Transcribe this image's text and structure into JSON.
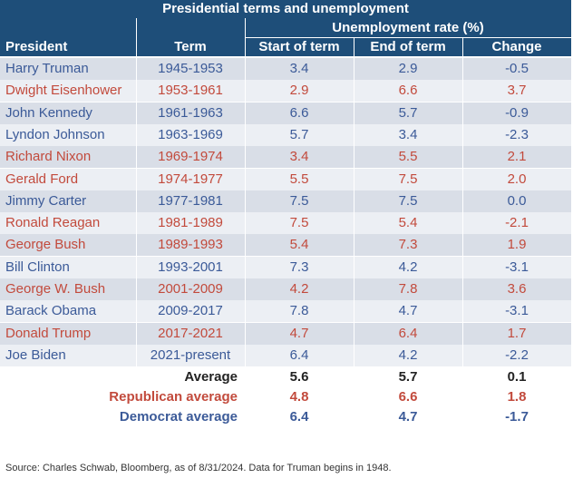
{
  "chart_data": {
    "type": "table",
    "title": "Presidential terms and unemployment",
    "group_header": "Unemployment rate (%)",
    "columns": [
      "President",
      "Term",
      "Start of term",
      "End of term",
      "Change"
    ],
    "rows": [
      {
        "president": "Harry Truman",
        "term": "1945-1953",
        "start": "3.4",
        "end": "2.9",
        "change": "-0.5",
        "party": "D"
      },
      {
        "president": "Dwight Eisenhower",
        "term": "1953-1961",
        "start": "2.9",
        "end": "6.6",
        "change": "3.7",
        "party": "R"
      },
      {
        "president": "John Kennedy",
        "term": "1961-1963",
        "start": "6.6",
        "end": "5.7",
        "change": "-0.9",
        "party": "D"
      },
      {
        "president": "Lyndon Johnson",
        "term": "1963-1969",
        "start": "5.7",
        "end": "3.4",
        "change": "-2.3",
        "party": "D"
      },
      {
        "president": "Richard Nixon",
        "term": "1969-1974",
        "start": "3.4",
        "end": "5.5",
        "change": "2.1",
        "party": "R"
      },
      {
        "president": "Gerald Ford",
        "term": "1974-1977",
        "start": "5.5",
        "end": "7.5",
        "change": "2.0",
        "party": "R"
      },
      {
        "president": "Jimmy Carter",
        "term": "1977-1981",
        "start": "7.5",
        "end": "7.5",
        "change": "0.0",
        "party": "D"
      },
      {
        "president": "Ronald Reagan",
        "term": "1981-1989",
        "start": "7.5",
        "end": "5.4",
        "change": "-2.1",
        "party": "R"
      },
      {
        "president": "George Bush",
        "term": "1989-1993",
        "start": "5.4",
        "end": "7.3",
        "change": "1.9",
        "party": "R"
      },
      {
        "president": "Bill Clinton",
        "term": "1993-2001",
        "start": "7.3",
        "end": "4.2",
        "change": "-3.1",
        "party": "D"
      },
      {
        "president": "George W. Bush",
        "term": "2001-2009",
        "start": "4.2",
        "end": "7.8",
        "change": "3.6",
        "party": "R"
      },
      {
        "president": "Barack Obama",
        "term": "2009-2017",
        "start": "7.8",
        "end": "4.7",
        "change": "-3.1",
        "party": "D"
      },
      {
        "president": "Donald Trump",
        "term": "2017-2021",
        "start": "4.7",
        "end": "6.4",
        "change": "1.7",
        "party": "R"
      },
      {
        "president": "Joe Biden",
        "term": "2021-present",
        "start": "6.4",
        "end": "4.2",
        "change": "-2.2",
        "party": "D"
      }
    ],
    "summary": [
      {
        "label": "Average",
        "start": "5.6",
        "end": "5.7",
        "change": "0.1",
        "party": "all"
      },
      {
        "label": "Republican average",
        "start": "4.8",
        "end": "6.6",
        "change": "1.8",
        "party": "R"
      },
      {
        "label": "Democrat average",
        "start": "6.4",
        "end": "4.7",
        "change": "-1.7",
        "party": "D"
      }
    ]
  },
  "colors": {
    "header_bg": "#1e4e79",
    "democrat": "#3b5a98",
    "republican": "#c24a3c",
    "row_odd": "#d9dee7",
    "row_even": "#eceff4"
  },
  "source": "Source: Charles Schwab, Bloomberg, as of 8/31/2024. Data for Truman begins in 1948."
}
